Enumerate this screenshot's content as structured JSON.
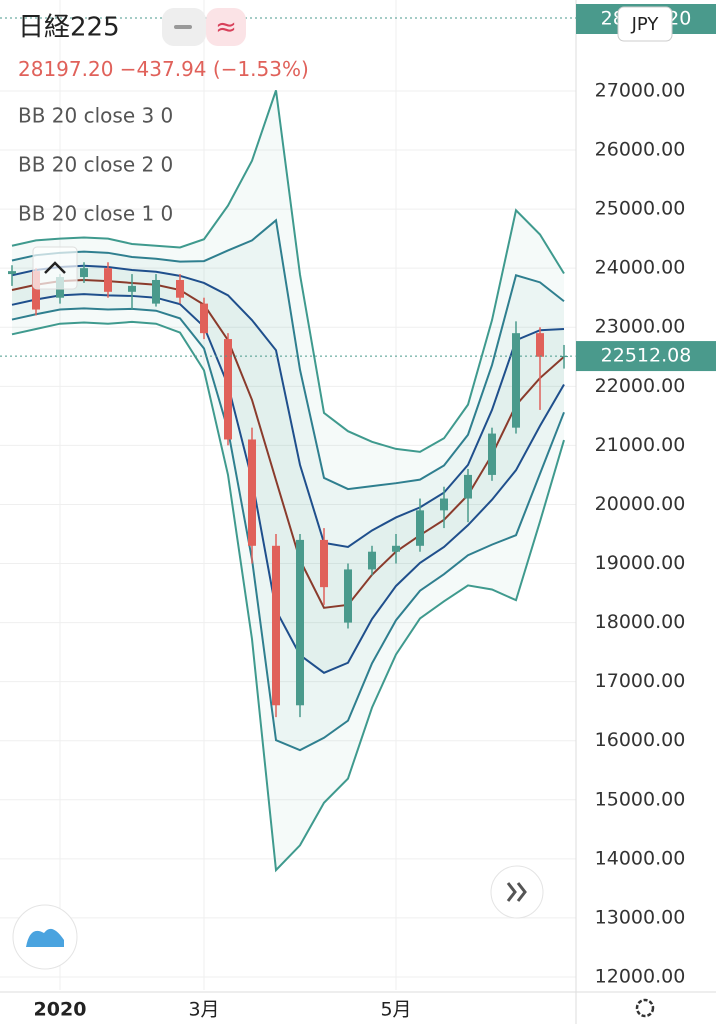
{
  "header": {
    "symbol": "日経225",
    "price": "28197.20",
    "change": "−437.94 (−1.53%)",
    "currency": "JPY"
  },
  "chart_data": {
    "type": "candlestick",
    "categories": [
      null,
      null,
      "2020",
      null,
      null,
      null,
      null,
      null,
      "3月",
      null,
      null,
      null,
      null,
      null,
      null,
      null,
      "5月",
      null,
      null,
      null,
      null,
      null,
      null,
      null
    ],
    "open": [
      23900,
      23950,
      23500,
      23850,
      24000,
      23600,
      23400,
      23800,
      23400,
      22800,
      21100,
      19300,
      16600,
      19400,
      18000,
      18900,
      19200,
      19300,
      19900,
      20100,
      20500,
      21300,
      22900,
      22500
    ],
    "high": [
      24050,
      24000,
      23900,
      24100,
      24100,
      23900,
      23900,
      23900,
      23500,
      22900,
      21300,
      19500,
      19500,
      19600,
      19000,
      19300,
      19500,
      20100,
      20300,
      20600,
      21300,
      23100,
      23000,
      22700
    ],
    "low": [
      23700,
      23200,
      23400,
      23750,
      23500,
      23300,
      23350,
      23400,
      22800,
      21000,
      19000,
      16400,
      16400,
      18300,
      17900,
      18800,
      19000,
      19200,
      19600,
      19700,
      20400,
      21200,
      21600,
      22300
    ],
    "close": [
      23950,
      23300,
      23850,
      24000,
      23600,
      23700,
      23800,
      23500,
      22900,
      21100,
      19300,
      16600,
      19400,
      18600,
      18900,
      19200,
      19300,
      19900,
      20100,
      20500,
      21200,
      22900,
      22500,
      22512.08
    ],
    "up_color": "#4a9a8c",
    "down_color": "#e0615a",
    "basis": {
      "color": "#8a3b2c",
      "values": [
        23630,
        23720,
        23780,
        23800,
        23780,
        23750,
        23720,
        23630,
        23380,
        22780,
        21770,
        20410,
        19060,
        18250,
        18300,
        18810,
        19200,
        19480,
        19740,
        20160,
        20840,
        21680,
        22140,
        22500
      ]
    },
    "indicators": [
      {
        "name": "BB 20 close 3 0",
        "color": "#3f9a8e",
        "upper": [
          24380,
          24470,
          24500,
          24520,
          24500,
          24410,
          24380,
          24350,
          24490,
          25060,
          25820,
          27010,
          23890,
          21550,
          21240,
          21060,
          20940,
          20890,
          21120,
          21690,
          23120,
          24980,
          24570,
          23910
        ],
        "lower": [
          22880,
          22970,
          23060,
          23080,
          23060,
          23090,
          23060,
          22910,
          22270,
          20500,
          17720,
          13810,
          14230,
          14950,
          15360,
          16560,
          17460,
          18070,
          18360,
          18630,
          18560,
          18380,
          19710,
          21090
        ]
      },
      {
        "name": "BB 20 close 2 0",
        "color": "#2f7f8f",
        "upper": [
          24130,
          24220,
          24260,
          24280,
          24260,
          24190,
          24160,
          24110,
          24120,
          24300,
          24470,
          24810,
          22280,
          20450,
          20260,
          20310,
          20360,
          20420,
          20660,
          21180,
          22360,
          23880,
          23760,
          23440
        ],
        "lower": [
          23130,
          23220,
          23300,
          23320,
          23300,
          23310,
          23280,
          23150,
          22640,
          21260,
          19070,
          16010,
          15840,
          16050,
          16340,
          17310,
          18040,
          18540,
          18820,
          19140,
          19320,
          19480,
          20520,
          21560
        ]
      },
      {
        "name": "BB 20 close 1 0",
        "color": "#1f4f8c",
        "upper": [
          23880,
          23970,
          24020,
          24040,
          24020,
          23970,
          23940,
          23870,
          23750,
          23540,
          23120,
          22610,
          20670,
          19350,
          19280,
          19560,
          19780,
          19950,
          20200,
          20670,
          21600,
          22780,
          22950,
          22970
        ],
        "lower": [
          23380,
          23470,
          23540,
          23560,
          23540,
          23530,
          23500,
          23390,
          23010,
          22020,
          20420,
          18210,
          17450,
          17150,
          17320,
          18060,
          18620,
          19010,
          19280,
          19650,
          20080,
          20580,
          21330,
          22030
        ]
      }
    ],
    "last_price": 22512.08,
    "ylim": [
      11780,
      28540
    ],
    "yticks": [
      {
        "value": 12000,
        "label": "12000.00"
      },
      {
        "value": 13000,
        "label": "13000.00"
      },
      {
        "value": 14000,
        "label": "14000.00"
      },
      {
        "value": 15000,
        "label": "15000.00"
      },
      {
        "value": 16000,
        "label": "16000.00"
      },
      {
        "value": 17000,
        "label": "17000.00"
      },
      {
        "value": 18000,
        "label": "18000.00"
      },
      {
        "value": 19000,
        "label": "19000.00"
      },
      {
        "value": 20000,
        "label": "20000.00"
      },
      {
        "value": 21000,
        "label": "21000.00"
      },
      {
        "value": 22000,
        "label": "22000.00"
      },
      {
        "value": 23000,
        "label": "23000.00"
      },
      {
        "value": 24000,
        "label": "24000.00"
      },
      {
        "value": 25000,
        "label": "25000.00"
      },
      {
        "value": 26000,
        "label": "26000.00"
      },
      {
        "value": 27000,
        "label": "27000.00"
      }
    ],
    "grid": true
  }
}
